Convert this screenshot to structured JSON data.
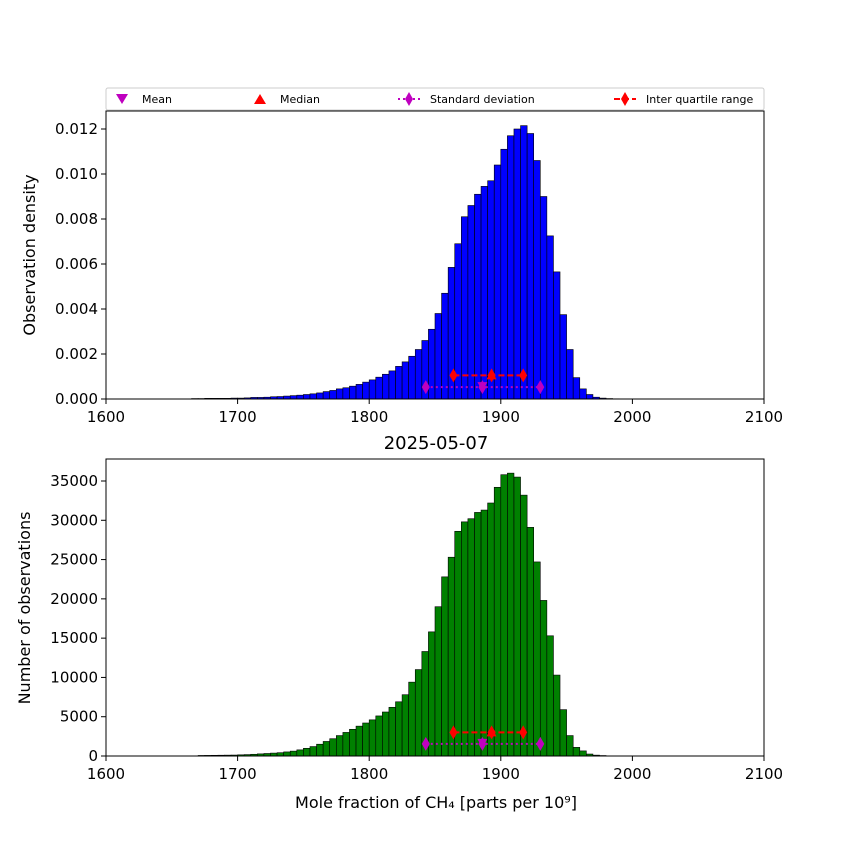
{
  "figure_title": "2025-05-07",
  "legend": {
    "entries": [
      {
        "label": "Mean",
        "marker": "triangle-down",
        "color": "#bf00bf"
      },
      {
        "label": "Median",
        "marker": "triangle-up",
        "color": "#ff0000"
      },
      {
        "label": "Standard deviation",
        "marker": "thin-diamond",
        "color": "#bf00bf",
        "line": "dotted"
      },
      {
        "label": "Inter quartile range",
        "marker": "thin-diamond",
        "color": "#ff0000",
        "line": "dashed"
      }
    ]
  },
  "chart_data": [
    {
      "type": "bar",
      "name": "density-histogram",
      "ylabel": "Observation density",
      "xlabel": "",
      "xlim": [
        1600,
        2100
      ],
      "ylim": [
        0,
        0.0128
      ],
      "xticks": [
        "1600",
        "1700",
        "1800",
        "1900",
        "2000",
        "2100"
      ],
      "yticks": [
        "0.000",
        "0.002",
        "0.004",
        "0.006",
        "0.008",
        "0.010",
        "0.012"
      ],
      "bar_color": "#0000ff",
      "bin_start": 1665,
      "bin_width": 5,
      "values": [
        2e-05,
        2e-05,
        3e-05,
        3e-05,
        3e-05,
        3e-05,
        4e-05,
        4e-05,
        5e-05,
        7e-05,
        7e-05,
        8e-05,
        0.0001,
        0.00011,
        0.00013,
        0.00015,
        0.00017,
        0.0002,
        0.00023,
        0.00027,
        0.00033,
        0.00038,
        0.00045,
        0.0005,
        0.00057,
        0.00065,
        0.00075,
        0.00085,
        0.00097,
        0.0011,
        0.00125,
        0.00145,
        0.00165,
        0.0019,
        0.0022,
        0.0026,
        0.0031,
        0.0038,
        0.0047,
        0.00585,
        0.0069,
        0.0081,
        0.0086,
        0.0091,
        0.00945,
        0.0097,
        0.0104,
        0.0111,
        0.0117,
        0.012,
        0.01215,
        0.0118,
        0.0106,
        0.009,
        0.00725,
        0.00565,
        0.00375,
        0.0022,
        0.00095,
        0.00045,
        0.0002,
        8e-05,
        4e-05,
        2e-05,
        1e-05
      ],
      "summary": {
        "mean": 1886,
        "median": 1893,
        "std_range": [
          1843,
          1930
        ],
        "std_y": 0.00053,
        "iqr_range": [
          1864,
          1917
        ],
        "iqr_y": 0.00105
      }
    },
    {
      "type": "bar",
      "name": "count-histogram",
      "ylabel": "Number of observations",
      "xlabel": "Mole fraction of CH₄ [parts per 10⁹]",
      "xlim": [
        1600,
        2100
      ],
      "ylim": [
        0,
        37800
      ],
      "xticks": [
        "1600",
        "1700",
        "1800",
        "1900",
        "2000",
        "2100"
      ],
      "yticks": [
        "0",
        "5000",
        "10000",
        "15000",
        "20000",
        "25000",
        "30000",
        "35000"
      ],
      "bar_color": "#008000",
      "bin_start": 1670,
      "bin_width": 5,
      "values": [
        70,
        80,
        90,
        100,
        110,
        120,
        150,
        180,
        220,
        270,
        320,
        370,
        420,
        520,
        620,
        780,
        980,
        1200,
        1500,
        1850,
        2200,
        2600,
        3000,
        3400,
        3800,
        4200,
        4600,
        5100,
        5600,
        6200,
        6900,
        7800,
        9400,
        11000,
        13300,
        15800,
        19000,
        22800,
        25300,
        28600,
        29800,
        30200,
        31000,
        31300,
        32200,
        34200,
        35800,
        36000,
        35500,
        33200,
        29100,
        24700,
        19800,
        15300,
        10300,
        5900,
        2600,
        1100,
        650,
        250,
        110,
        60
      ],
      "summary": {
        "mean": 1886,
        "median": 1893,
        "std_range": [
          1843,
          1930
        ],
        "std_y": 1550,
        "iqr_range": [
          1864,
          1917
        ],
        "iqr_y": 3000
      }
    }
  ]
}
